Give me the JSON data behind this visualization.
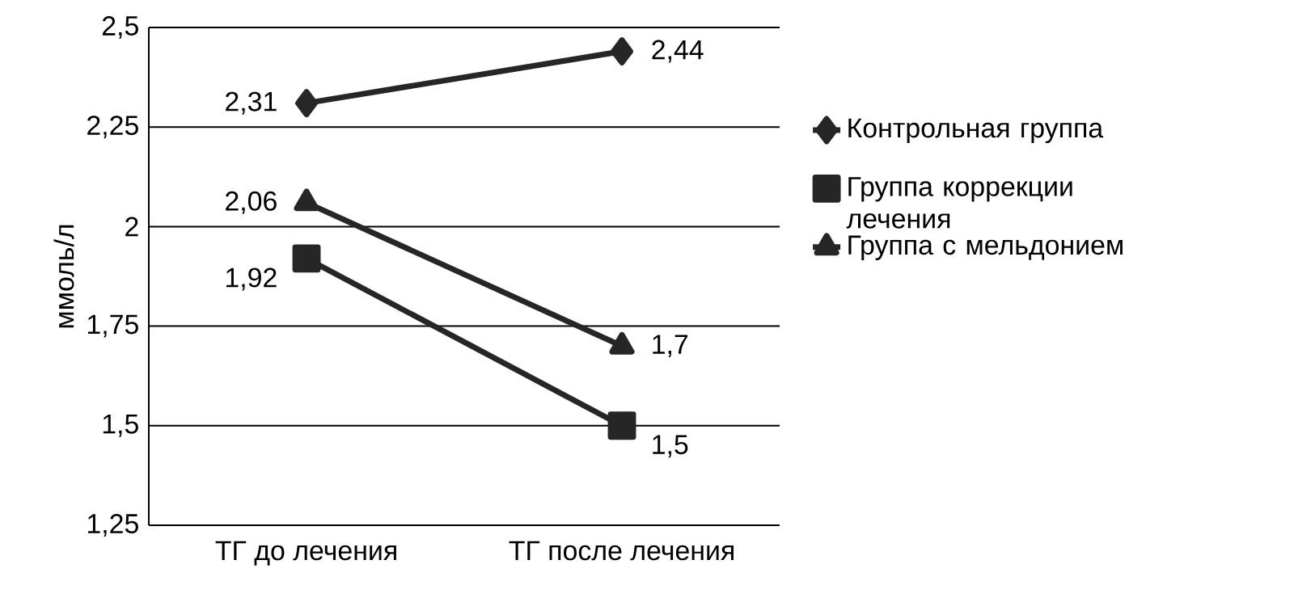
{
  "chart_data": {
    "type": "line",
    "ylabel": "ммоль/л",
    "categories": [
      "ТГ до лечения",
      "ТГ после лечения"
    ],
    "series": [
      {
        "name": "Контрольная группа",
        "color": "#262626",
        "marker": "diamond",
        "values": [
          2.31,
          2.44
        ],
        "value_labels": [
          "2,31",
          "2,44"
        ]
      },
      {
        "name": "Группа коррекции лечения",
        "color": "#262626",
        "marker": "square",
        "values": [
          1.92,
          1.5
        ],
        "value_labels": [
          "1,92",
          "1,5"
        ]
      },
      {
        "name": "Группа с мельдонием",
        "color": "#262626",
        "marker": "triangle",
        "values": [
          2.06,
          1.7
        ],
        "value_labels": [
          "2,06",
          "1,7"
        ]
      }
    ],
    "ylim": [
      1.25,
      2.5
    ],
    "yticks": [
      {
        "value": 1.25,
        "label": "1,25"
      },
      {
        "value": 1.5,
        "label": "1,5"
      },
      {
        "value": 1.75,
        "label": "1,75"
      },
      {
        "value": 2,
        "label": "2"
      },
      {
        "value": 2.25,
        "label": "2,25"
      },
      {
        "value": 2.5,
        "label": "2,5"
      }
    ],
    "grid": "y",
    "legend": "right",
    "line_style": "solid"
  }
}
